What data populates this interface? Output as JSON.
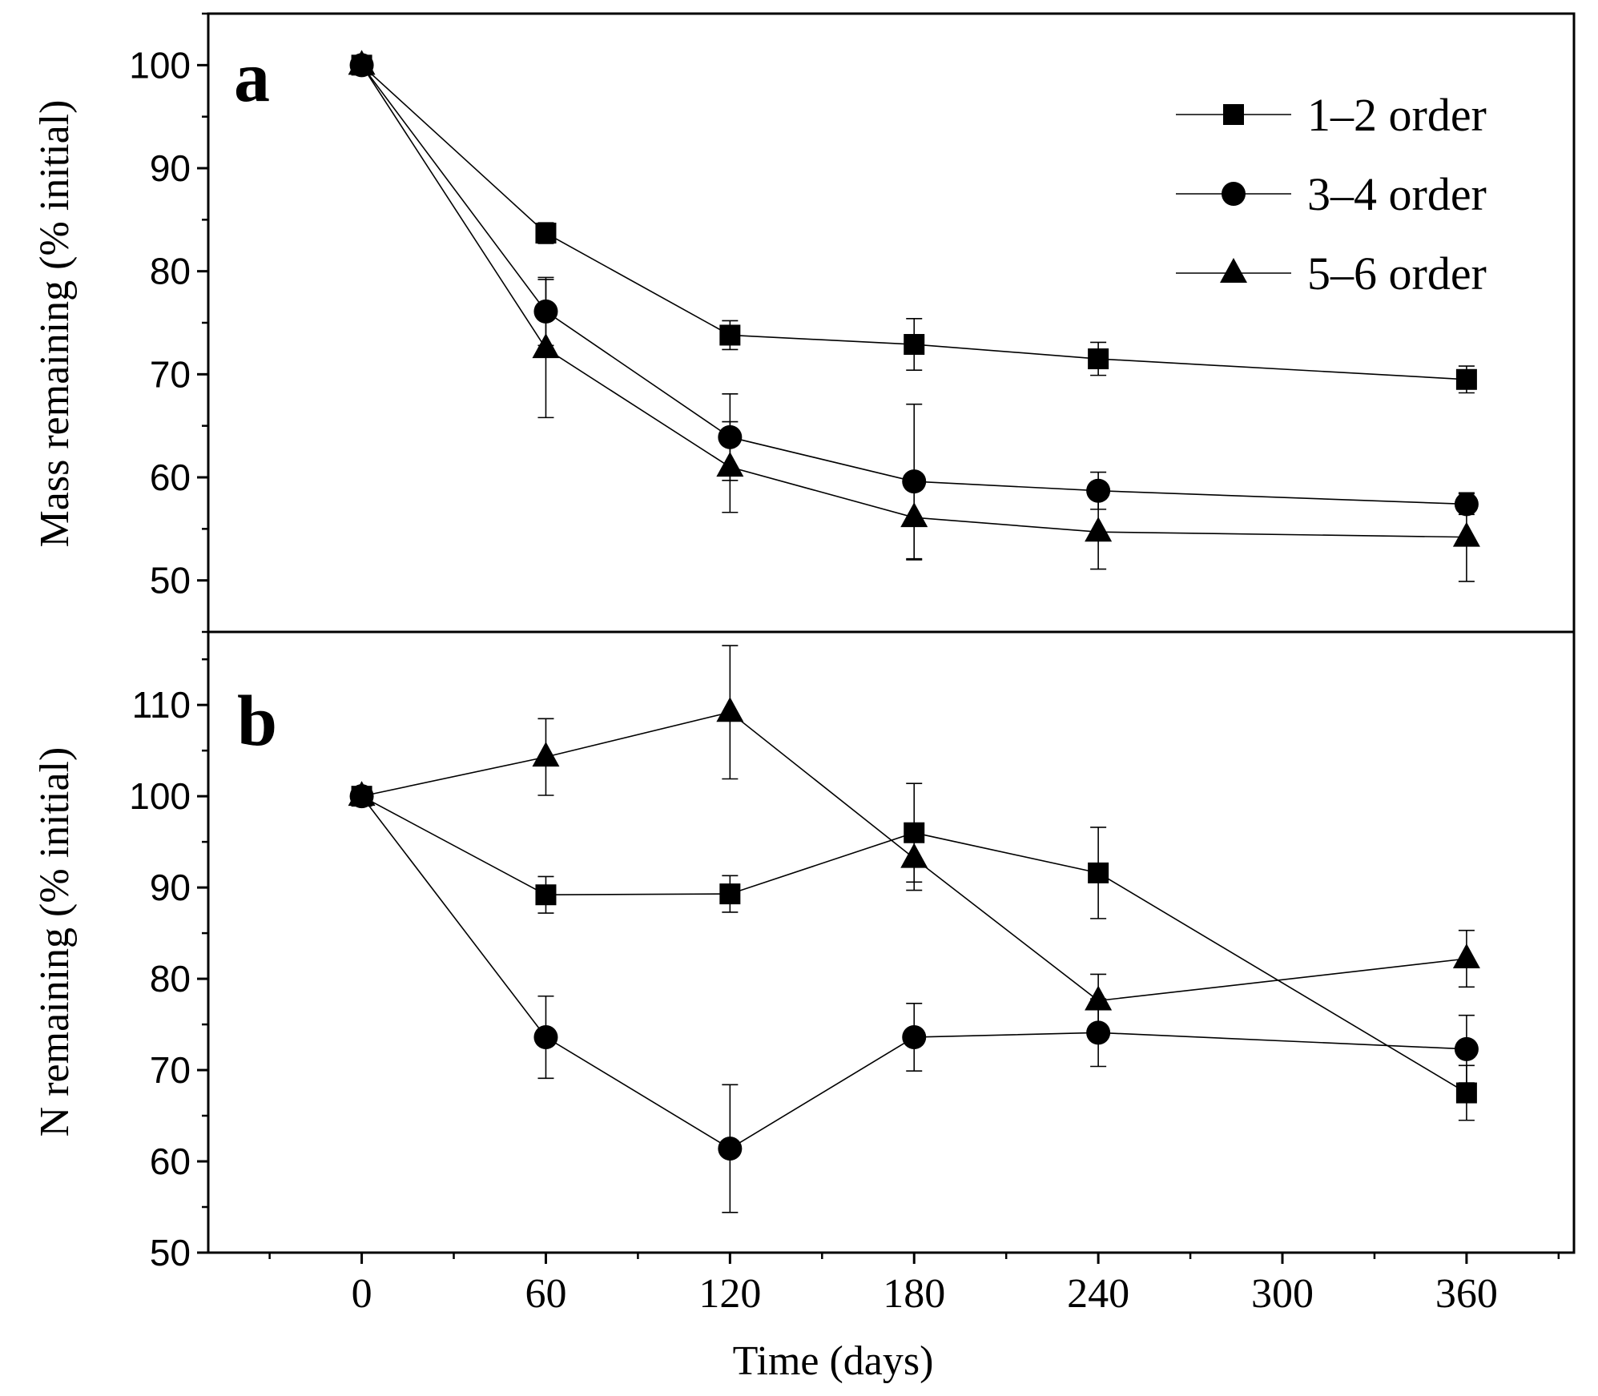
{
  "chart_data": {
    "type": "line",
    "x": [
      0,
      60,
      120,
      180,
      240,
      360
    ],
    "xlim": [
      -50,
      395
    ],
    "xticks": [
      0,
      60,
      120,
      180,
      240,
      300,
      360
    ],
    "xlabel": "Time (days)",
    "markers": {
      "1–2 order": "square",
      "3–4 order": "circle",
      "5–6 order": "triangle"
    },
    "legend": {
      "placement": "top-right",
      "entries": [
        "1–2 order",
        "3–4 order",
        "5–6 order"
      ]
    },
    "color": "#000000",
    "panels": [
      {
        "panel": "a",
        "ylabel": "Mass remaining (% initial)",
        "ylim": [
          45,
          105
        ],
        "yticks": [
          50,
          60,
          70,
          80,
          90,
          100
        ],
        "series": [
          {
            "name": "1–2 order",
            "values": [
              100,
              83.7,
              73.8,
              72.9,
              71.5,
              69.5
            ],
            "errors": [
              0,
              1.0,
              1.4,
              2.5,
              1.6,
              1.3
            ]
          },
          {
            "name": "3–4 order",
            "values": [
              100,
              76.1,
              63.9,
              59.6,
              58.7,
              57.4
            ],
            "errors": [
              0,
              3.3,
              4.2,
              7.5,
              1.8,
              1.0
            ]
          },
          {
            "name": "5–6 order",
            "values": [
              100,
              72.5,
              61.0,
              56.1,
              54.7,
              54.2
            ],
            "errors": [
              0,
              6.7,
              4.4,
              4.1,
              3.6,
              4.3
            ]
          }
        ]
      },
      {
        "panel": "b",
        "ylabel": "N remaining (% initial)",
        "ylim": [
          50,
          118
        ],
        "yticks": [
          50,
          60,
          70,
          80,
          90,
          100,
          110
        ],
        "series": [
          {
            "name": "1–2 order",
            "values": [
              100,
              89.2,
              89.3,
              96.0,
              91.6,
              67.5
            ],
            "errors": [
              0,
              2.0,
              2.0,
              5.4,
              5.0,
              3.0
            ]
          },
          {
            "name": "3–4 order",
            "values": [
              100,
              73.6,
              61.4,
              73.6,
              74.1,
              72.3
            ],
            "errors": [
              0,
              4.5,
              7.0,
              3.7,
              3.7,
              3.7
            ]
          },
          {
            "name": "5–6 order",
            "values": [
              100,
              104.3,
              109.2,
              93.2,
              77.6,
              82.2
            ],
            "errors": [
              0,
              4.2,
              7.3,
              3.5,
              2.9,
              3.1
            ]
          }
        ]
      }
    ]
  }
}
